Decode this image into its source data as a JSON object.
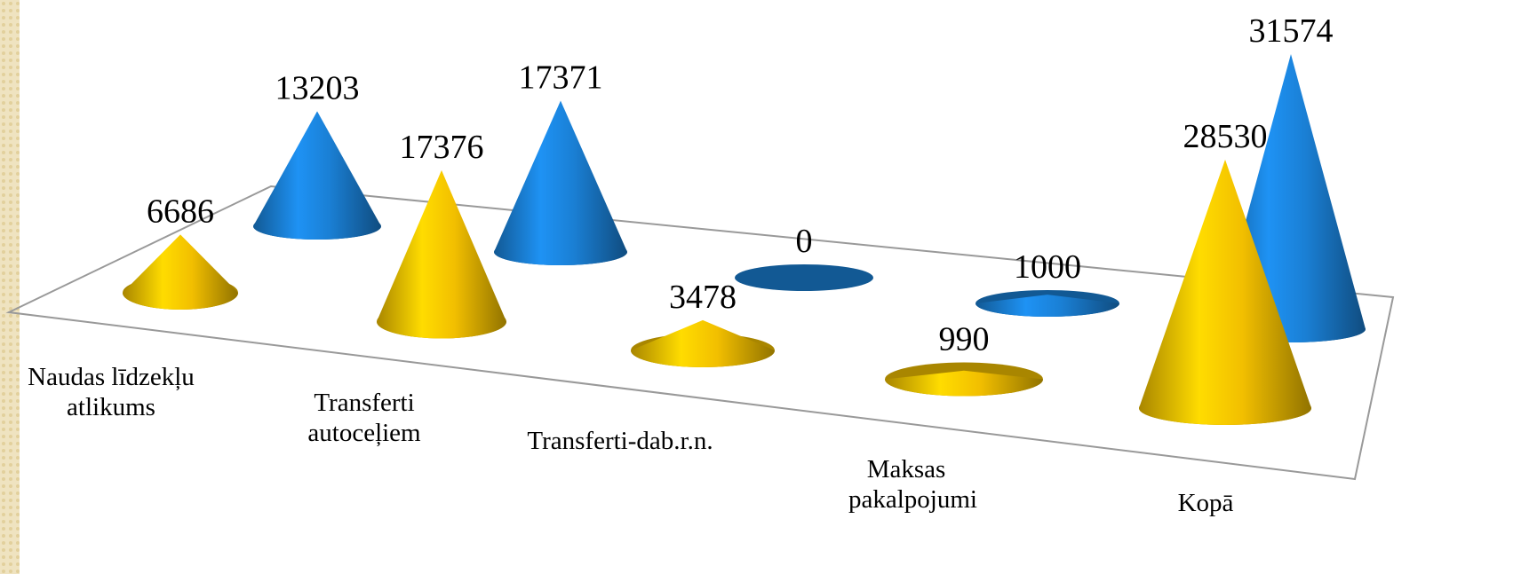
{
  "chart_data": {
    "type": "cone3d",
    "categories": [
      "Naudas līdzekļu atlikums",
      "Transferti autoceļiem",
      "Transferti-dab.r.n.",
      "Maksas pakalpojumi",
      "Kopā"
    ],
    "series": [
      {
        "color": "#1a7fd4",
        "values": [
          13203,
          17371,
          0,
          1000,
          31574
        ]
      },
      {
        "color": "#f2bf00",
        "values": [
          6686,
          17376,
          3478,
          990,
          28530
        ]
      }
    ]
  }
}
